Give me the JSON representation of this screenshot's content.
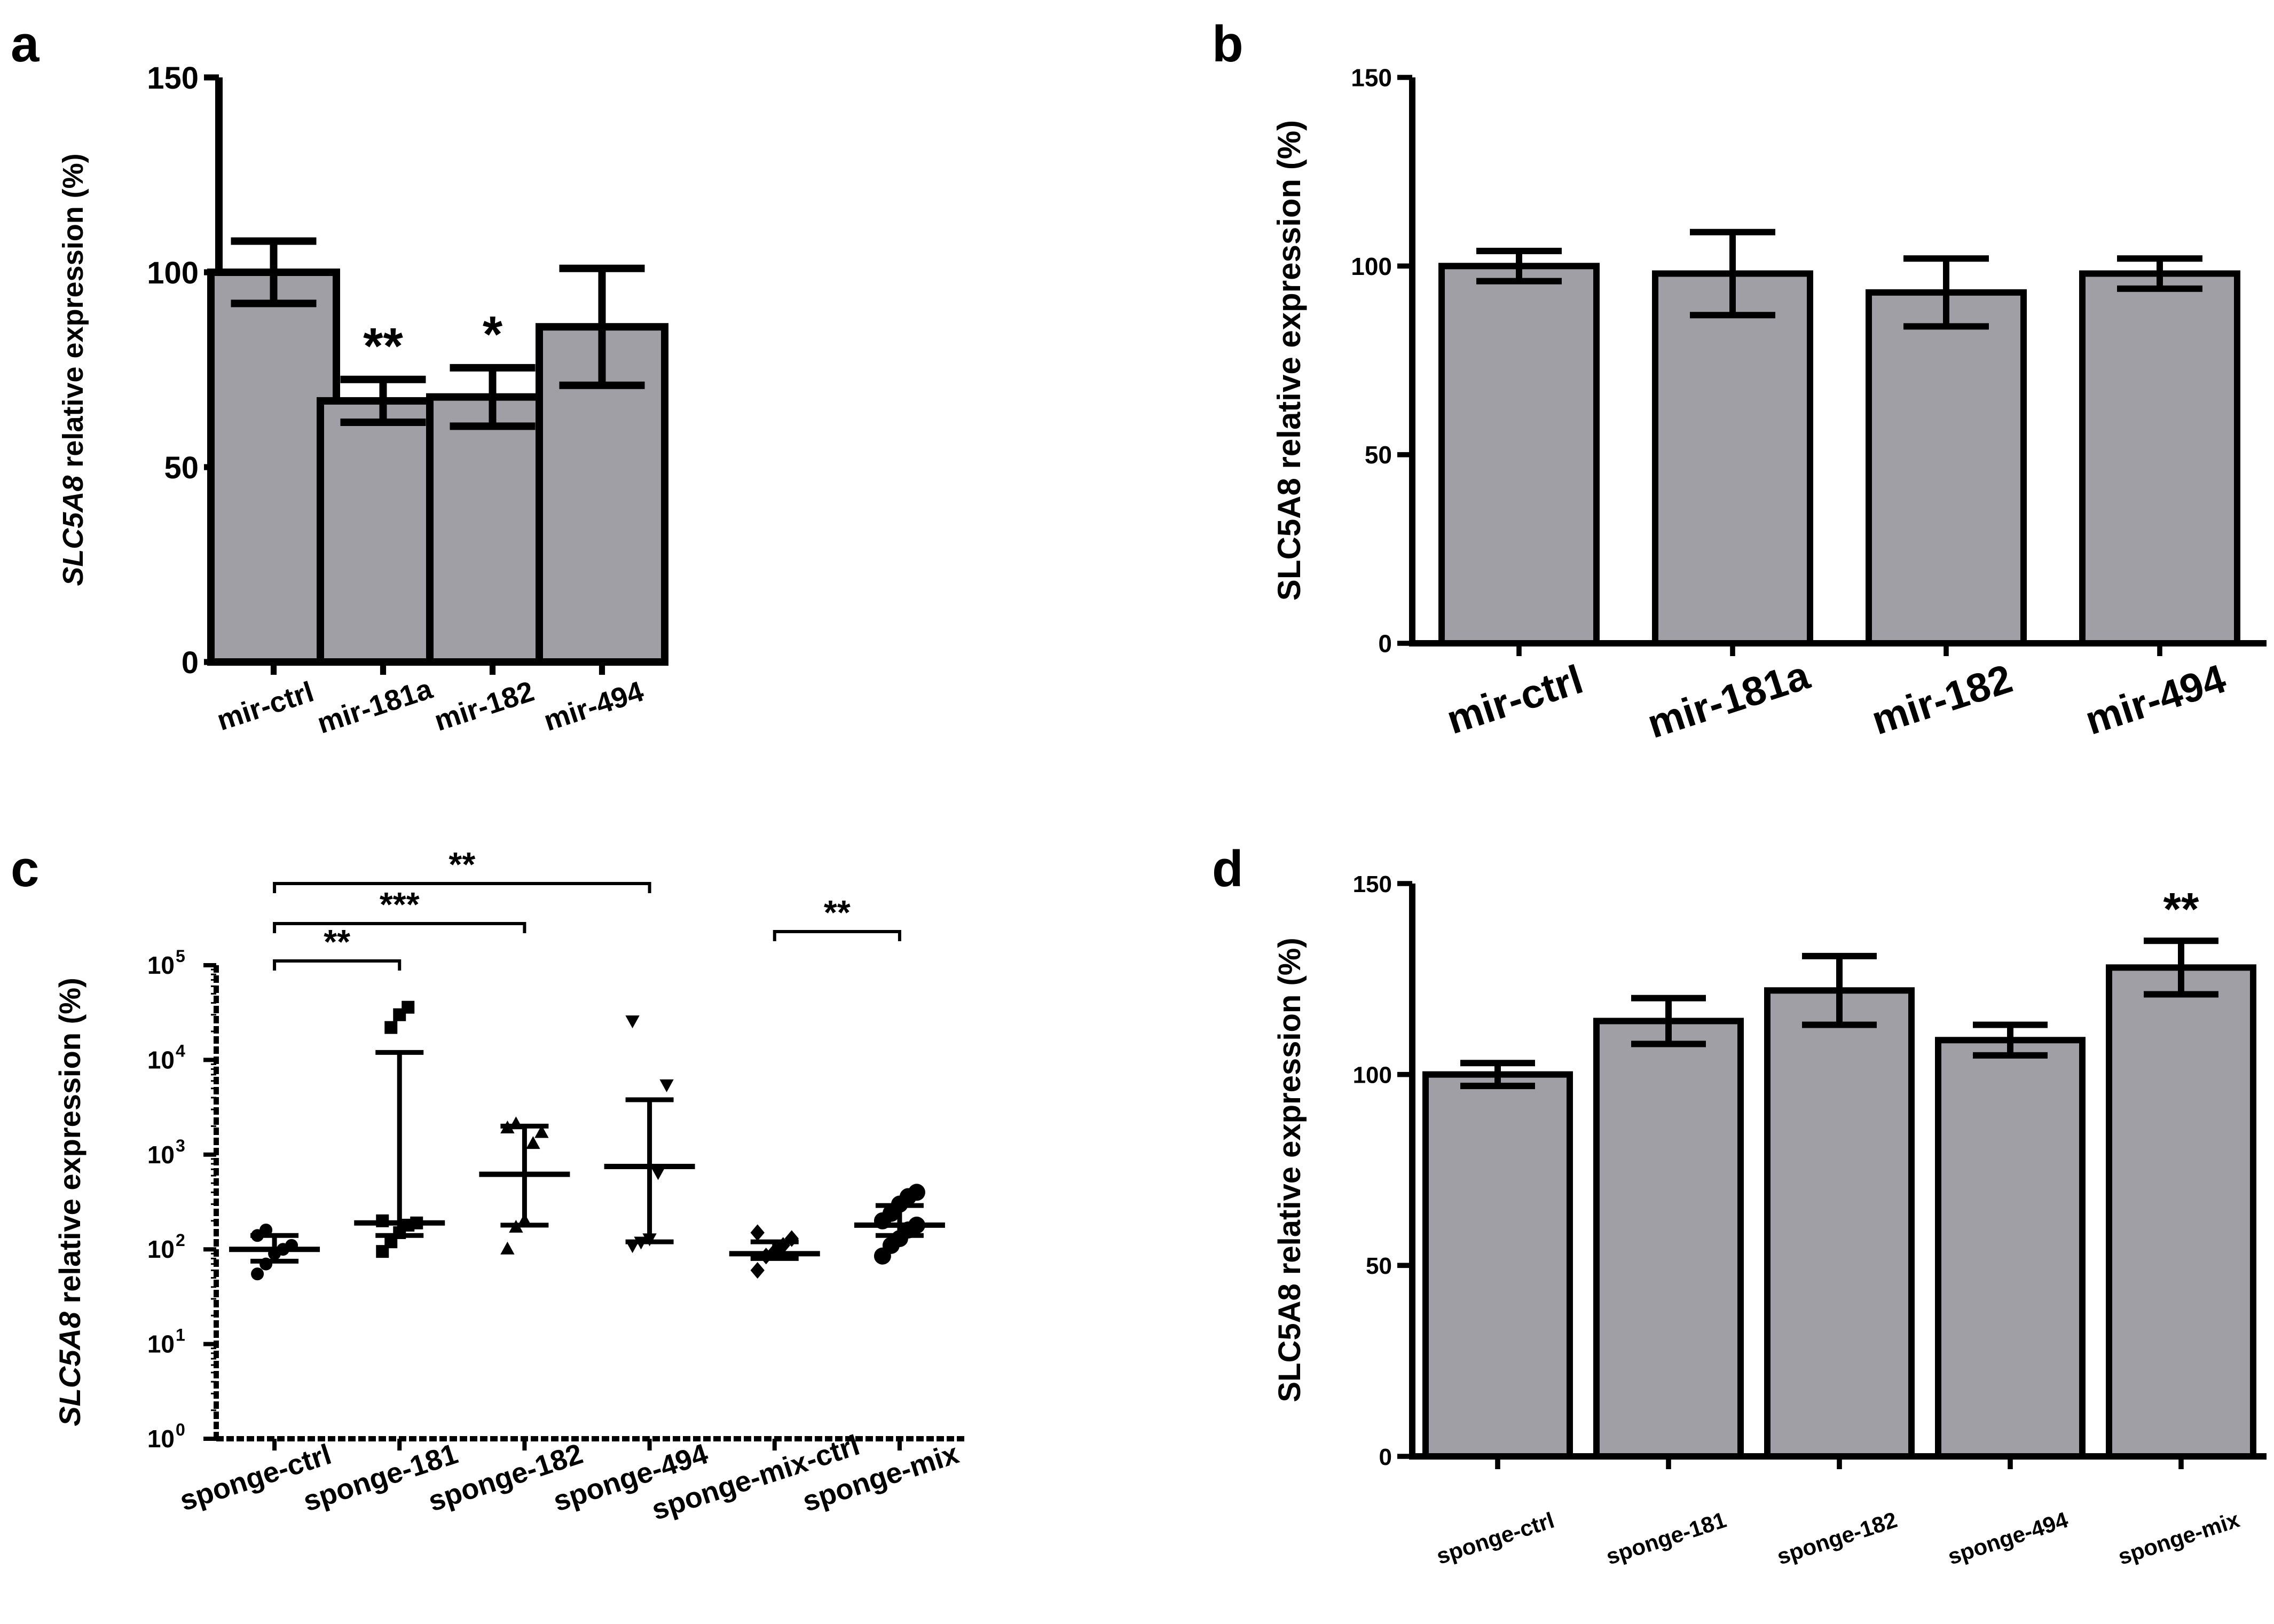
{
  "colors": {
    "bar_fill": "#a09fa5",
    "ink": "#000000",
    "background": "#ffffff"
  },
  "chart_data": [
    {
      "panel": "a",
      "type": "bar",
      "ylabel_italic": "SLC5A8",
      "ylabel_rest": " relative expression (%)",
      "ylim": [
        0,
        150
      ],
      "yticks": [
        0,
        50,
        100,
        150
      ],
      "categories": [
        "mir-ctrl",
        "mir-181a",
        "mir-182",
        "mir-494"
      ],
      "values": [
        100,
        67,
        68,
        86
      ],
      "errors": [
        8,
        5.5,
        7.5,
        15
      ],
      "annotations": [
        "",
        "**",
        "*",
        ""
      ]
    },
    {
      "panel": "b",
      "type": "bar",
      "ylabel_italic": "",
      "ylabel_rest": "SLC5A8 relative expression (%)",
      "ylim": [
        0,
        150
      ],
      "yticks": [
        0,
        50,
        100,
        150
      ],
      "categories": [
        "mir-ctrl",
        "mir-181a",
        "mir-182",
        "mir-494"
      ],
      "values": [
        100,
        98,
        93,
        98
      ],
      "errors": [
        4,
        11,
        9,
        4
      ],
      "annotations": [
        "",
        "",
        "",
        ""
      ]
    },
    {
      "panel": "c",
      "type": "scatter",
      "yscale": "log",
      "ylabel_italic": "SLC5A8",
      "ylabel_rest": " relative expression (%)",
      "ylim": [
        1,
        100000
      ],
      "ytick_exponents": [
        "0",
        "1",
        "2",
        "3",
        "4",
        "5"
      ],
      "categories": [
        "sponge-ctrl",
        "sponge-181",
        "sponge-182",
        "sponge-494",
        "sponge-mix-ctrl",
        "sponge-mix"
      ],
      "markers": [
        "circle",
        "square",
        "triangle",
        "triangle-down",
        "diamond",
        "circle"
      ],
      "medians": [
        100,
        190,
        620,
        750,
        90,
        180
      ],
      "iqr_low": [
        75,
        140,
        180,
        120,
        80,
        140
      ],
      "iqr_high": [
        140,
        12000,
        2000,
        3800,
        120,
        290
      ],
      "points": [
        [
          55,
          70,
          90,
          100,
          110,
          140,
          160
        ],
        [
          95,
          120,
          150,
          180,
          190,
          200,
          22000,
          30000,
          36000
        ],
        [
          100,
          170,
          200,
          1300,
          1700,
          1900,
          2100
        ],
        [
          110,
          120,
          130,
          650,
          5500,
          26000
        ],
        [
          60,
          85,
          95,
          110,
          130,
          150
        ],
        [
          85,
          110,
          130,
          160,
          180,
          200,
          240,
          300,
          360,
          400
        ]
      ],
      "brackets": [
        {
          "from": 0,
          "to": 1,
          "label": "**"
        },
        {
          "from": 0,
          "to": 2,
          "label": "***"
        },
        {
          "from": 0,
          "to": 3,
          "label": "**"
        },
        {
          "from": 4,
          "to": 5,
          "label": "**"
        }
      ]
    },
    {
      "panel": "d",
      "type": "bar",
      "ylabel_italic": "",
      "ylabel_rest": "SLC5A8 relative expression (%)",
      "ylim": [
        0,
        150
      ],
      "yticks": [
        0,
        50,
        100,
        150
      ],
      "categories": [
        "sponge-ctrl",
        "sponge-181",
        "sponge-182",
        "sponge-494",
        "sponge-mix"
      ],
      "values": [
        100,
        114,
        122,
        109,
        128
      ],
      "errors": [
        3,
        6,
        9,
        4,
        7
      ],
      "annotations": [
        "",
        "",
        "",
        "",
        "**"
      ]
    }
  ]
}
